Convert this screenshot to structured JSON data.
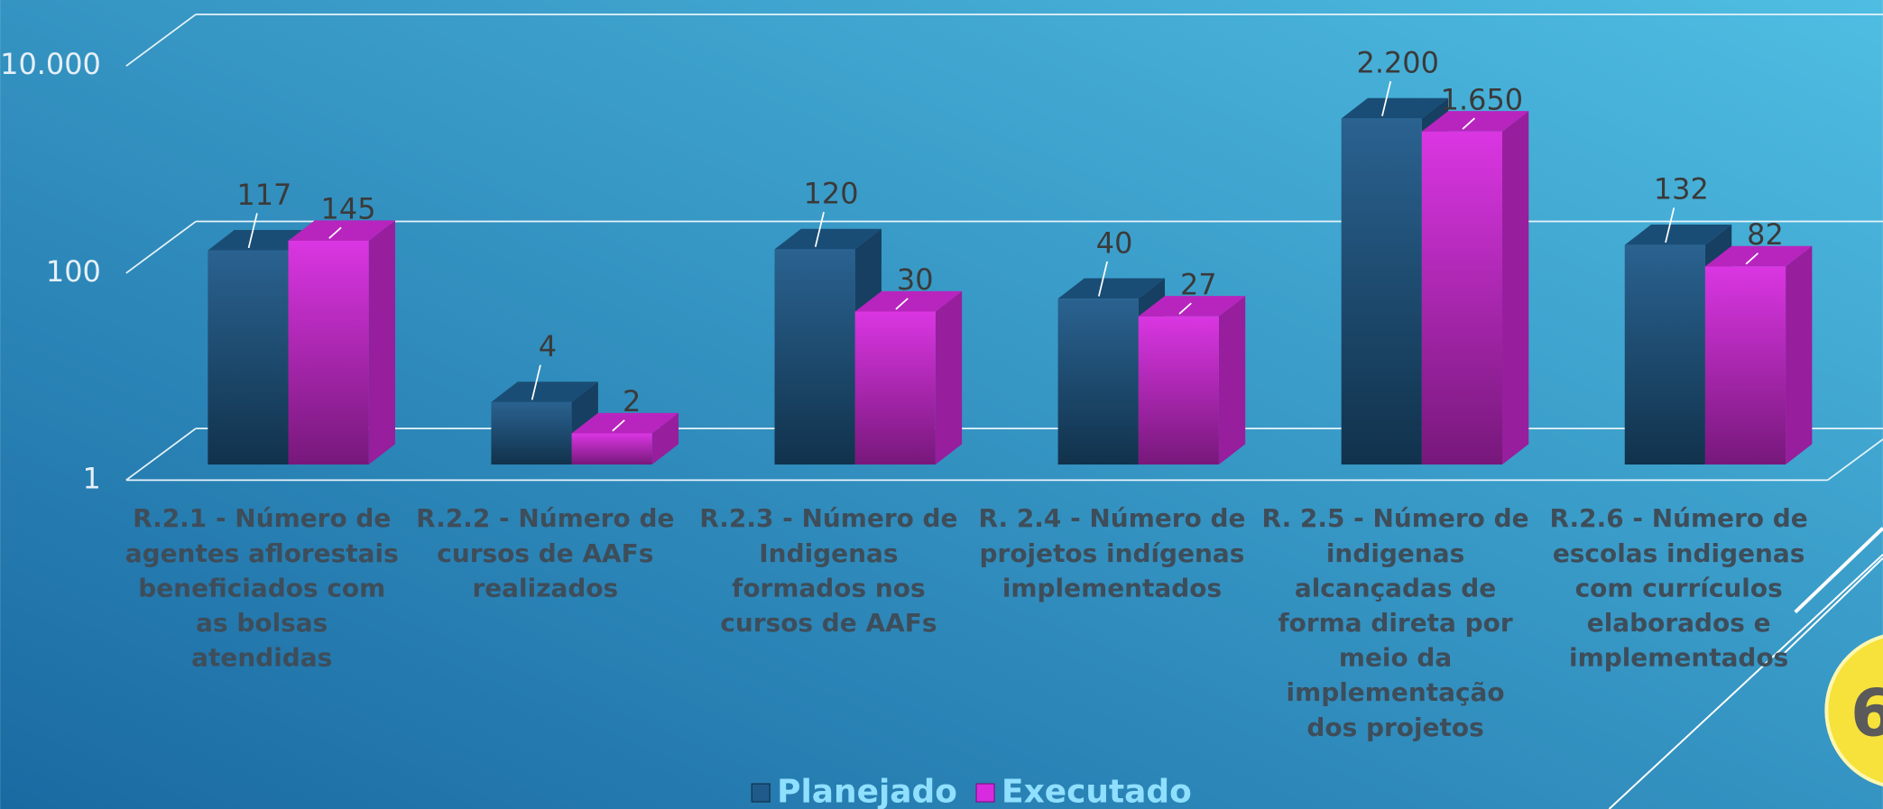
{
  "chart_data": {
    "type": "bar3d",
    "categories": [
      "R.2.1 - Número de agentes aflorestais beneficiados com as bolsas atendidas",
      "R.2.2 - Número de cursos de AAFs realizados",
      "R.2.3 - Número de Indigenas formados nos cursos de AAFs",
      "R. 2.4 - Número de projetos indígenas implementados",
      "R. 2.5 - Número de indigenas alcançadas de forma direta por meio da implementação dos projetos",
      "R.2.6 - Número de escolas indigenas com currículos elaborados e implementados"
    ],
    "series": [
      {
        "name": "Planejado",
        "color": "#1f5a8a",
        "values": [
          117,
          4,
          120,
          40,
          2200,
          132
        ],
        "value_labels": [
          "117",
          "4",
          "120",
          "40",
          "2.200",
          "132"
        ]
      },
      {
        "name": "Executado",
        "color": "#d82be0",
        "values": [
          145,
          2,
          30,
          27,
          1650,
          82
        ],
        "value_labels": [
          "145",
          "2",
          "30",
          "27",
          "1.650",
          "82"
        ]
      }
    ],
    "ylim": [
      1,
      10000
    ],
    "log_scale": true,
    "grid": true,
    "yticks": [
      1,
      100,
      {
        "value": 10000,
        "label": "10.000"
      }
    ],
    "legend": "bottom"
  },
  "slide_number": "6"
}
